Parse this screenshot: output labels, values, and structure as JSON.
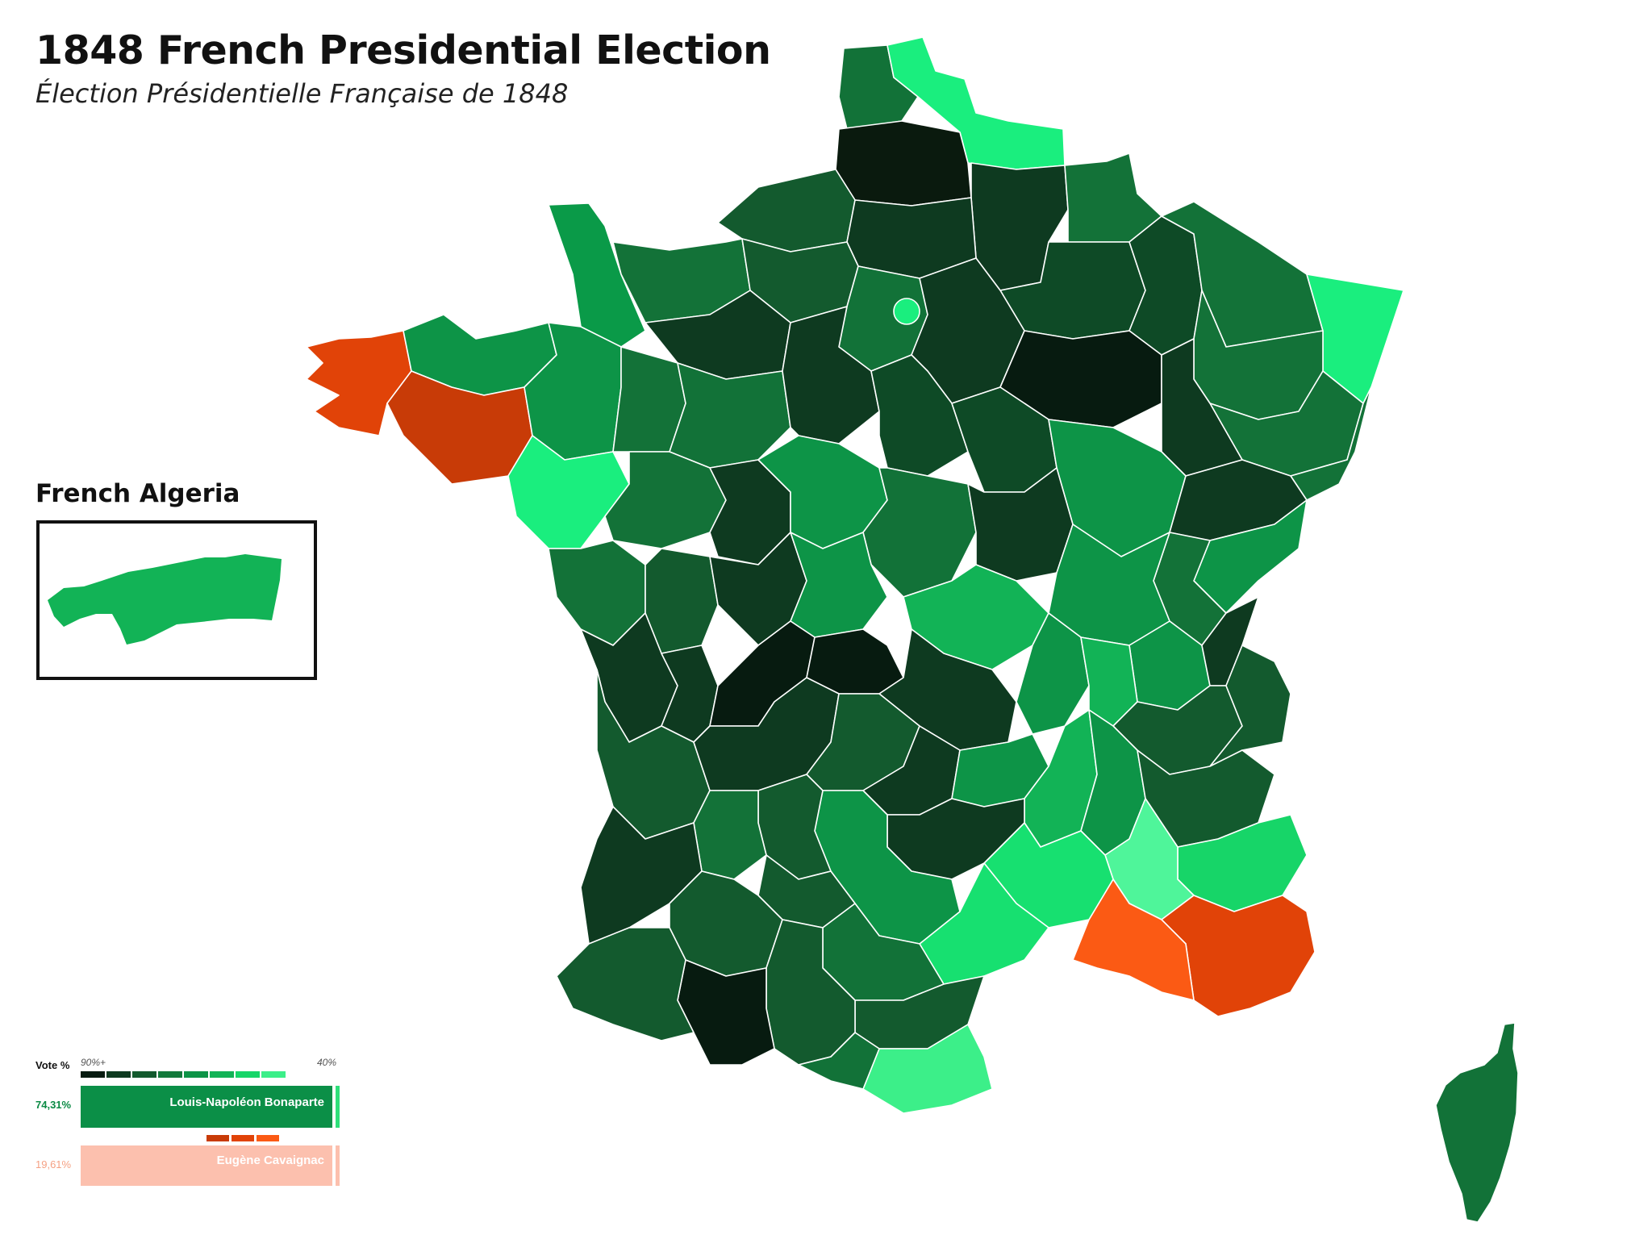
{
  "title": "1848 French Presidential Election",
  "subtitle": "Élection Présidentielle Française de 1848",
  "inset": {
    "title": "French Algeria"
  },
  "legend": {
    "vote_label": "Vote %",
    "scale_high": "90%+",
    "scale_low": "40%",
    "green_scale": [
      "#071b10",
      "#0e3a20",
      "#135a2e",
      "#137a3c",
      "#0d9447",
      "#12b356",
      "#17d568",
      "#3cef89"
    ],
    "red_scale": [
      "#c83b07",
      "#e14308",
      "#fb5a14"
    ],
    "candidates": [
      {
        "name": "Louis-Napoléon Bonaparte",
        "pct": "74,31%",
        "color": "#0b8f47"
      },
      {
        "name": "Eugène Cavaignac",
        "pct": "19,61%",
        "color": "#fcc0ae"
      }
    ]
  }
}
